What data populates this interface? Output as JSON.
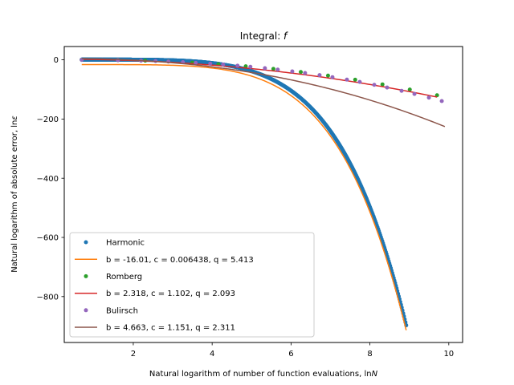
{
  "chart_data": {
    "type": "scatter",
    "title": "Integral: f",
    "title_prefix": "Integral: ",
    "title_var": "f",
    "xlabel_prefix": "Natural logarithm of number of function evaluations, ln",
    "xlabel_var": "N",
    "ylabel_prefix": "Natural logarithm of absolute error, ln",
    "ylabel_var": "ε",
    "xlim": [
      0.25,
      10.35
    ],
    "ylim": [
      -955,
      45
    ],
    "xticks": [
      2,
      4,
      6,
      8,
      10
    ],
    "xtick_labels": [
      "2",
      "4",
      "6",
      "8",
      "10"
    ],
    "yticks": [
      0,
      -200,
      -400,
      -600,
      -800
    ],
    "ytick_labels": [
      "0",
      "−200",
      "−400",
      "−600",
      "−800"
    ],
    "grid": false,
    "legend_position": "lower-left",
    "series": [
      {
        "name": "Harmonic",
        "kind": "points",
        "color": "#1f77b4",
        "x_range": [
          0.693,
          8.92
        ],
        "count": 1200,
        "model": {
          "b": 0.7,
          "c": 0.006438,
          "q": 5.413
        }
      },
      {
        "name": "b = -16.01, c = 0.006438, q = 5.413",
        "kind": "fit",
        "color": "#ff7f0e",
        "x_range": [
          0.693,
          8.92
        ],
        "model": {
          "b": -16.01,
          "c": 0.006438,
          "q": 5.413
        }
      },
      {
        "name": "Romberg",
        "kind": "points",
        "color": "#2ca02c",
        "x": [
          0.693,
          1.609,
          2.303,
          2.89,
          3.497,
          4.159,
          4.852,
          5.553,
          6.247,
          6.938,
          7.627,
          8.318,
          9.011,
          9.702
        ],
        "y": [
          -0.1,
          -0.9,
          -2.6,
          -5.4,
          -9.4,
          -14.8,
          -21.9,
          -30.6,
          -41.1,
          -53.3,
          -67.2,
          -82.9,
          -100.4,
          -119.6
        ],
        "fit_model": {
          "b": 2.318,
          "c": 1.102,
          "q": 2.093
        }
      },
      {
        "name": "b = 2.318, c = 1.102, q = 2.093",
        "kind": "fit",
        "color": "#d62728",
        "x_range": [
          0.693,
          9.7
        ],
        "model": {
          "b": 2.318,
          "c": 1.102,
          "q": 2.093
        }
      },
      {
        "name": "Bulirsch",
        "kind": "points",
        "color": "#9467bd",
        "x": [
          0.693,
          1.609,
          2.197,
          2.565,
          2.89,
          3.258,
          3.584,
          3.951,
          4.277,
          4.644,
          4.97,
          5.338,
          5.663,
          6.031,
          6.356,
          6.724,
          7.05,
          7.417,
          7.742,
          8.11,
          8.435,
          8.803,
          9.129,
          9.496,
          9.822
        ],
        "y": [
          -0.1,
          -1.1,
          -2.8,
          -4.2,
          -5.7,
          -7.9,
          -10.1,
          -13.0,
          -15.9,
          -19.8,
          -23.5,
          -28.3,
          -33.0,
          -38.9,
          -44.6,
          -51.7,
          -58.5,
          -66.8,
          -74.7,
          -84.4,
          -93.5,
          -104.6,
          -115.1,
          -127.6,
          -139.4
        ],
        "fit_model": {
          "b": 4.663,
          "c": 1.151,
          "q": 2.311
        }
      },
      {
        "name": "b = 4.663, c = 1.151, q = 2.311",
        "kind": "fit",
        "color": "#8c564b",
        "x_range": [
          0.693,
          9.9
        ],
        "model": {
          "b": 4.663,
          "c": 1.151,
          "q": 2.311
        }
      }
    ]
  }
}
